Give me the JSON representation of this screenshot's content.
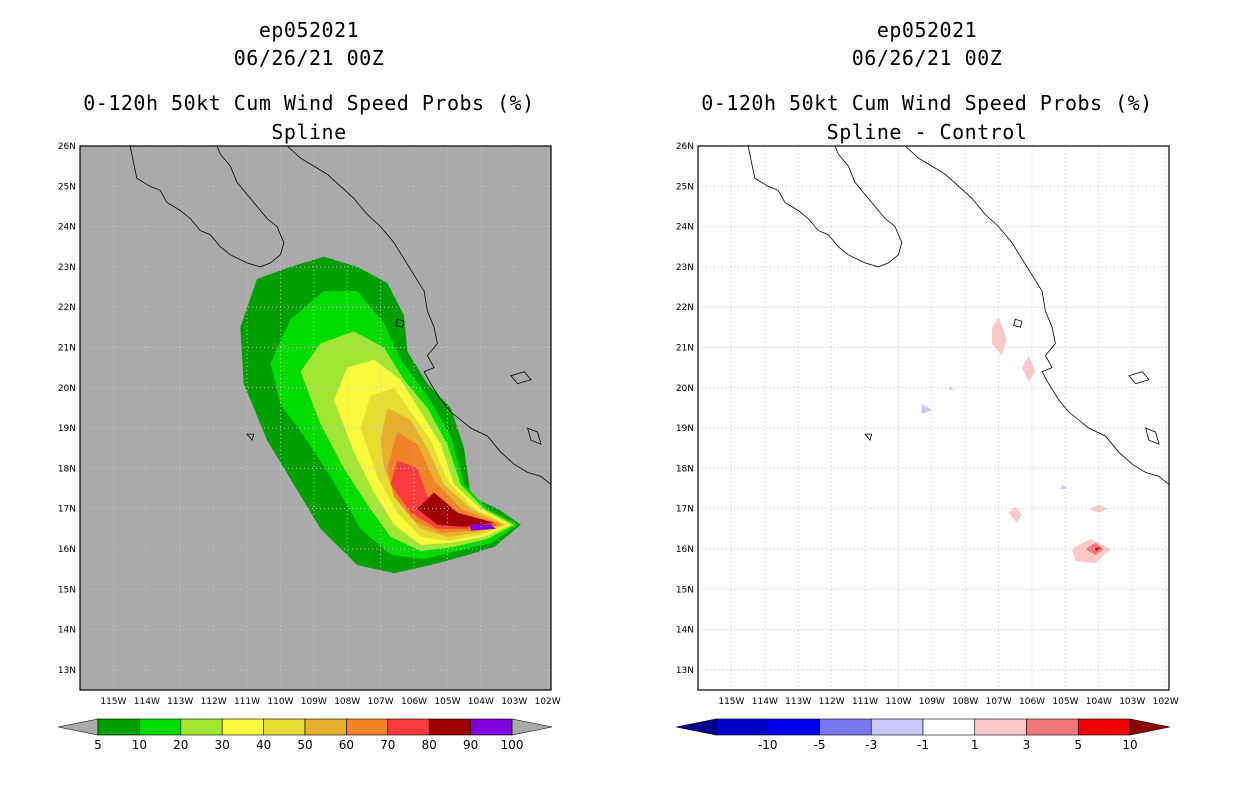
{
  "panels": [
    {
      "storm_id": "ep052021",
      "datetime": "06/26/21 00Z",
      "product": "0-120h 50kt Cum Wind Speed Probs (%)",
      "subtitle": "Spline",
      "background": "#aaaaaa"
    },
    {
      "storm_id": "ep052021",
      "datetime": "06/26/21 00Z",
      "product": "0-120h 50kt Cum Wind Speed Probs (%)",
      "subtitle": "Spline - Control",
      "background": "#ffffff"
    }
  ],
  "axes": {
    "lon_labels": [
      "115W",
      "114W",
      "113W",
      "112W",
      "111W",
      "110W",
      "109W",
      "108W",
      "107W",
      "106W",
      "105W",
      "104W",
      "103W",
      "102W"
    ],
    "lat_labels": [
      "13N",
      "14N",
      "15N",
      "16N",
      "17N",
      "18N",
      "19N",
      "20N",
      "21N",
      "22N",
      "23N",
      "24N",
      "25N",
      "26N"
    ]
  },
  "colorbars": {
    "left": {
      "labels": [
        "5",
        "10",
        "20",
        "30",
        "40",
        "50",
        "60",
        "70",
        "80",
        "90",
        "100"
      ],
      "colors": [
        "#00a000",
        "#00dc00",
        "#a0e632",
        "#fafa3c",
        "#e6dc32",
        "#e6af2d",
        "#f08228",
        "#fa3c3c",
        "#a00000",
        "#8200dc"
      ],
      "end_color": "#aaaaaa"
    },
    "right": {
      "labels": [
        "-10",
        "-5",
        "-3",
        "-1",
        "1",
        "3",
        "5",
        "10"
      ],
      "colors": [
        "#0000c8",
        "#0000f0",
        "#7878f0",
        "#c8c8ff",
        "#ffffff",
        "#ffc8c8",
        "#f07878",
        "#f00000"
      ],
      "end_low": "#00008c",
      "end_high": "#8c0000"
    }
  },
  "chart_data": [
    {
      "type": "contour",
      "title": "0-120h 50kt Cum Wind Speed Probs (%) - Spline",
      "field": "cumulative 50kt wind speed probability (%)",
      "levels": [
        5,
        10,
        20,
        30,
        40,
        50,
        60,
        70,
        80,
        90,
        100
      ],
      "contours": [
        {
          "level": 5,
          "lonlat": [
            [
              -111.2,
              21.5
            ],
            [
              -110.7,
              22.7
            ],
            [
              -109.7,
              23.0
            ],
            [
              -108.7,
              23.25
            ],
            [
              -107.7,
              23.0
            ],
            [
              -106.8,
              22.6
            ],
            [
              -106.3,
              21.8
            ],
            [
              -106.2,
              20.9
            ],
            [
              -105.6,
              20.1
            ],
            [
              -104.9,
              19.5
            ],
            [
              -104.5,
              18.5
            ],
            [
              -104.3,
              17.3
            ],
            [
              -103.5,
              17.0
            ],
            [
              -102.8,
              16.6
            ],
            [
              -103.6,
              16.05
            ],
            [
              -104.6,
              15.8
            ],
            [
              -105.5,
              15.6
            ],
            [
              -106.6,
              15.4
            ],
            [
              -107.7,
              15.6
            ],
            [
              -108.8,
              16.5
            ],
            [
              -109.6,
              17.6
            ],
            [
              -110.4,
              18.7
            ],
            [
              -111.1,
              20.1
            ]
          ]
        },
        {
          "level": 10,
          "lonlat": [
            [
              -110.3,
              20.6
            ],
            [
              -109.7,
              21.7
            ],
            [
              -108.7,
              22.4
            ],
            [
              -107.7,
              22.4
            ],
            [
              -106.9,
              21.6
            ],
            [
              -106.4,
              20.7
            ],
            [
              -105.6,
              19.8
            ],
            [
              -104.9,
              18.8
            ],
            [
              -104.5,
              17.6
            ],
            [
              -103.8,
              17.0
            ],
            [
              -102.9,
              16.6
            ],
            [
              -103.7,
              16.15
            ],
            [
              -104.7,
              15.95
            ],
            [
              -105.7,
              15.75
            ],
            [
              -106.7,
              15.85
            ],
            [
              -107.6,
              16.5
            ],
            [
              -108.5,
              17.8
            ],
            [
              -109.3,
              18.8
            ],
            [
              -110.0,
              19.6
            ]
          ]
        },
        {
          "level": 20,
          "lonlat": [
            [
              -109.4,
              20.4
            ],
            [
              -108.8,
              21.1
            ],
            [
              -107.8,
              21.4
            ],
            [
              -106.9,
              21.0
            ],
            [
              -106.3,
              20.2
            ],
            [
              -105.6,
              19.5
            ],
            [
              -105.0,
              18.6
            ],
            [
              -104.6,
              17.6
            ],
            [
              -103.9,
              17.0
            ],
            [
              -103.0,
              16.6
            ],
            [
              -103.8,
              16.25
            ],
            [
              -104.8,
              16.05
            ],
            [
              -105.8,
              15.95
            ],
            [
              -106.7,
              16.3
            ],
            [
              -107.4,
              17.1
            ],
            [
              -108.1,
              18.0
            ],
            [
              -108.8,
              19.1
            ]
          ]
        },
        {
          "level": 30,
          "lonlat": [
            [
              -108.4,
              19.7
            ],
            [
              -108.0,
              20.5
            ],
            [
              -107.2,
              20.7
            ],
            [
              -106.4,
              20.2
            ],
            [
              -105.8,
              19.4
            ],
            [
              -105.2,
              18.6
            ],
            [
              -104.8,
              17.6
            ],
            [
              -104.0,
              17.0
            ],
            [
              -103.1,
              16.6
            ],
            [
              -103.9,
              16.3
            ],
            [
              -104.9,
              16.15
            ],
            [
              -105.8,
              16.1
            ],
            [
              -106.6,
              16.6
            ],
            [
              -107.2,
              17.4
            ],
            [
              -107.8,
              18.4
            ]
          ]
        },
        {
          "level": 40,
          "lonlat": [
            [
              -107.6,
              19.0
            ],
            [
              -107.3,
              19.8
            ],
            [
              -106.6,
              20.0
            ],
            [
              -106.1,
              19.4
            ],
            [
              -105.5,
              18.7
            ],
            [
              -105.0,
              17.7
            ],
            [
              -104.2,
              17.0
            ],
            [
              -103.2,
              16.6
            ],
            [
              -104.0,
              16.35
            ],
            [
              -105.0,
              16.2
            ],
            [
              -105.8,
              16.3
            ],
            [
              -106.5,
              16.9
            ],
            [
              -107.1,
              17.8
            ]
          ]
        },
        {
          "level": 50,
          "lonlat": [
            [
              -107.0,
              18.7
            ],
            [
              -106.8,
              19.5
            ],
            [
              -106.1,
              19.2
            ],
            [
              -105.6,
              18.5
            ],
            [
              -105.1,
              17.6
            ],
            [
              -104.3,
              17.0
            ],
            [
              -103.3,
              16.6
            ],
            [
              -104.1,
              16.4
            ],
            [
              -105.0,
              16.3
            ],
            [
              -105.8,
              16.5
            ],
            [
              -106.5,
              17.2
            ],
            [
              -106.9,
              18.0
            ]
          ]
        },
        {
          "level": 60,
          "lonlat": [
            [
              -106.8,
              18.0
            ],
            [
              -106.5,
              18.9
            ],
            [
              -105.9,
              18.6
            ],
            [
              -105.4,
              17.7
            ],
            [
              -104.6,
              17.0
            ],
            [
              -103.4,
              16.6
            ],
            [
              -104.3,
              16.45
            ],
            [
              -105.2,
              16.4
            ],
            [
              -106.0,
              16.7
            ],
            [
              -106.6,
              17.3
            ]
          ]
        },
        {
          "level": 70,
          "lonlat": [
            [
              -106.7,
              17.6
            ],
            [
              -106.5,
              18.2
            ],
            [
              -105.9,
              18.0
            ],
            [
              -105.6,
              17.3
            ],
            [
              -104.7,
              16.85
            ],
            [
              -103.5,
              16.6
            ],
            [
              -104.4,
              16.5
            ],
            [
              -105.3,
              16.5
            ],
            [
              -106.1,
              16.9
            ]
          ]
        },
        {
          "level": 80,
          "lonlat": [
            [
              -105.9,
              17.0
            ],
            [
              -105.4,
              17.4
            ],
            [
              -104.7,
              16.9
            ],
            [
              -103.6,
              16.65
            ],
            [
              -104.5,
              16.55
            ],
            [
              -105.3,
              16.6
            ]
          ]
        },
        {
          "level": 90,
          "lonlat": [
            [
              -104.3,
              16.62
            ],
            [
              -103.7,
              16.6
            ],
            [
              -103.55,
              16.5
            ],
            [
              -104.3,
              16.45
            ]
          ]
        }
      ]
    },
    {
      "type": "contour",
      "title": "0-120h 50kt Cum Wind Speed Probs (%) - Spline - Control",
      "field": "probability difference (%)",
      "levels": [
        -10,
        -5,
        -3,
        -1,
        1,
        3,
        5,
        10
      ],
      "contours": [
        {
          "level": 1,
          "lonlat": [
            [
              -107.0,
              21.75
            ],
            [
              -106.75,
              21.2
            ],
            [
              -106.9,
              20.8
            ],
            [
              -107.2,
              21.1
            ],
            [
              -107.2,
              21.5
            ]
          ]
        },
        {
          "level": 1,
          "lonlat": [
            [
              -106.1,
              20.8
            ],
            [
              -105.9,
              20.4
            ],
            [
              -106.1,
              20.15
            ],
            [
              -106.3,
              20.5
            ]
          ]
        },
        {
          "level": 1,
          "lonlat": [
            [
              -106.5,
              17.05
            ],
            [
              -106.3,
              16.85
            ],
            [
              -106.45,
              16.65
            ],
            [
              -106.7,
              16.9
            ]
          ]
        },
        {
          "level": 1,
          "lonlat": [
            [
              -104.0,
              17.1
            ],
            [
              -103.75,
              17.0
            ],
            [
              -104.0,
              16.9
            ],
            [
              -104.3,
              17.0
            ]
          ]
        },
        {
          "level": 1,
          "lonlat": [
            [
              -104.25,
              16.25
            ],
            [
              -103.65,
              16.0
            ],
            [
              -104.1,
              15.65
            ],
            [
              -104.7,
              15.7
            ],
            [
              -104.8,
              16.0
            ]
          ]
        },
        {
          "level": 3,
          "lonlat": [
            [
              -104.1,
              16.15
            ],
            [
              -103.85,
              16.0
            ],
            [
              -104.1,
              15.85
            ],
            [
              -104.4,
              16.0
            ]
          ]
        },
        {
          "level": 5,
          "lonlat": [
            [
              -104.0,
              16.05
            ],
            [
              -103.95,
              16.0
            ],
            [
              -104.05,
              15.95
            ],
            [
              -104.15,
              16.0
            ]
          ]
        },
        {
          "level": -1,
          "lonlat": [
            [
              -109.3,
              19.6
            ],
            [
              -109.0,
              19.45
            ],
            [
              -109.3,
              19.35
            ]
          ]
        },
        {
          "level": -1,
          "lonlat": [
            [
              -108.45,
              20.05
            ],
            [
              -108.35,
              19.95
            ],
            [
              -108.5,
              19.95
            ]
          ]
        },
        {
          "level": -1,
          "lonlat": [
            [
              -105.1,
              17.6
            ],
            [
              -104.95,
              17.5
            ],
            [
              -105.15,
              17.48
            ]
          ]
        }
      ]
    }
  ]
}
